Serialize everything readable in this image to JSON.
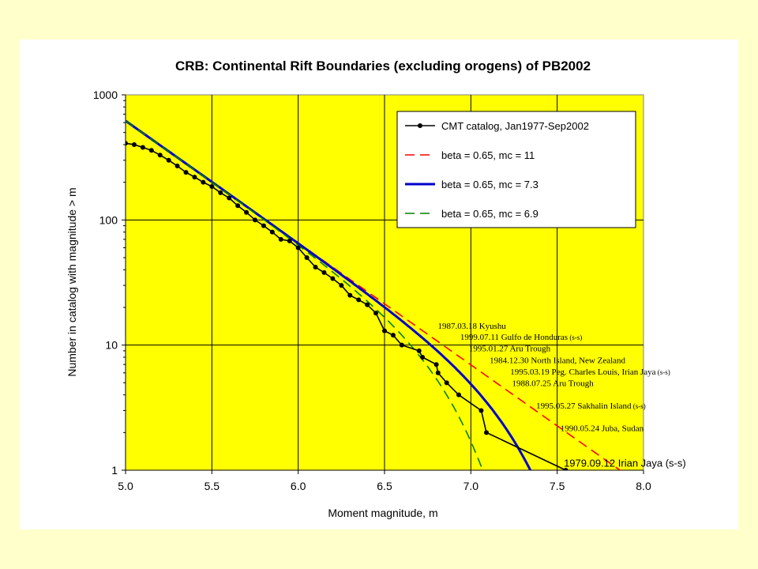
{
  "chart_data": {
    "type": "line",
    "title": "CRB: Continental Rift Boundaries (excluding orogens) of PB2002",
    "xlabel": "Moment magnitude, m",
    "ylabel": "Number in catalog with magnitude > m",
    "xlim": [
      5.0,
      8.0
    ],
    "ylim": [
      1,
      1000
    ],
    "y_scale": "log",
    "x_ticks": [
      "5.0",
      "5.5",
      "6.0",
      "6.5",
      "7.0",
      "7.5",
      "8.0"
    ],
    "y_ticks": [
      "1",
      "10",
      "100",
      "1000"
    ],
    "grid": true,
    "legend_position": "top-right",
    "plot_background": "#ffff00",
    "series": [
      {
        "name": "CMT catalog, Jan1977-Sep2002",
        "style": "line-with-markers",
        "color": "#000000",
        "x": [
          5.0,
          5.05,
          5.1,
          5.15,
          5.2,
          5.25,
          5.3,
          5.35,
          5.4,
          5.45,
          5.5,
          5.55,
          5.6,
          5.65,
          5.7,
          5.75,
          5.8,
          5.85,
          5.9,
          5.95,
          6.0,
          6.05,
          6.1,
          6.15,
          6.2,
          6.25,
          6.3,
          6.35,
          6.4,
          6.45,
          6.5,
          6.55,
          6.6,
          6.7,
          6.72,
          6.8,
          6.81,
          6.86,
          6.93,
          7.06,
          7.09,
          7.55
        ],
        "y": [
          410,
          400,
          380,
          360,
          330,
          300,
          270,
          240,
          220,
          200,
          185,
          165,
          150,
          130,
          115,
          100,
          90,
          80,
          70,
          68,
          60,
          50,
          42,
          38,
          34,
          30,
          25,
          23,
          21,
          18,
          13,
          12,
          10,
          9,
          8,
          7,
          6,
          5,
          4,
          3,
          2,
          1
        ]
      },
      {
        "name": "beta = 0.65, mc = 11",
        "style": "dashed",
        "color": "#ff0000",
        "beta": 0.65,
        "mc": 11
      },
      {
        "name": "beta = 0.65, mc = 7.3",
        "style": "solid",
        "color": "#0000cc",
        "beta": 0.65,
        "mc": 7.3
      },
      {
        "name": "beta = 0.65, mc = 6.9",
        "style": "dashed",
        "color": "#008000",
        "beta": 0.65,
        "mc": 6.9
      }
    ],
    "annotations": [
      {
        "x": 6.9,
        "y": 13.5,
        "text": "1987.03.18 Kyushu",
        "suffix": ""
      },
      {
        "x": 7.03,
        "y": 11.0,
        "text": "1999.07.11 Gulfo de Honduras",
        "suffix": "(s-s)"
      },
      {
        "x": 7.08,
        "y": 8.9,
        "text": "1995.01.27 Aru Trough",
        "suffix": ""
      },
      {
        "x": 7.2,
        "y": 7.2,
        "text": "1984.12.30 North Island, New Zealand",
        "suffix": ""
      },
      {
        "x": 7.32,
        "y": 5.8,
        "text": "1995.03.19 Peg. Charles Louis, Irian Jaya",
        "suffix": "(s-s)"
      },
      {
        "x": 7.33,
        "y": 4.7,
        "text": "1988.07.25 Aru Trough",
        "suffix": ""
      },
      {
        "x": 7.47,
        "y": 3.1,
        "text": "1995.05.27 Sakhalin Island",
        "suffix": "(s-s)"
      },
      {
        "x": 7.61,
        "y": 2.05,
        "text": "1990.05.24 Juba, Sudan",
        "suffix": ""
      },
      {
        "x": 7.63,
        "y": 1.07,
        "text": "1979.09.12 Irian Jaya (s-s)",
        "suffix": ""
      }
    ]
  }
}
